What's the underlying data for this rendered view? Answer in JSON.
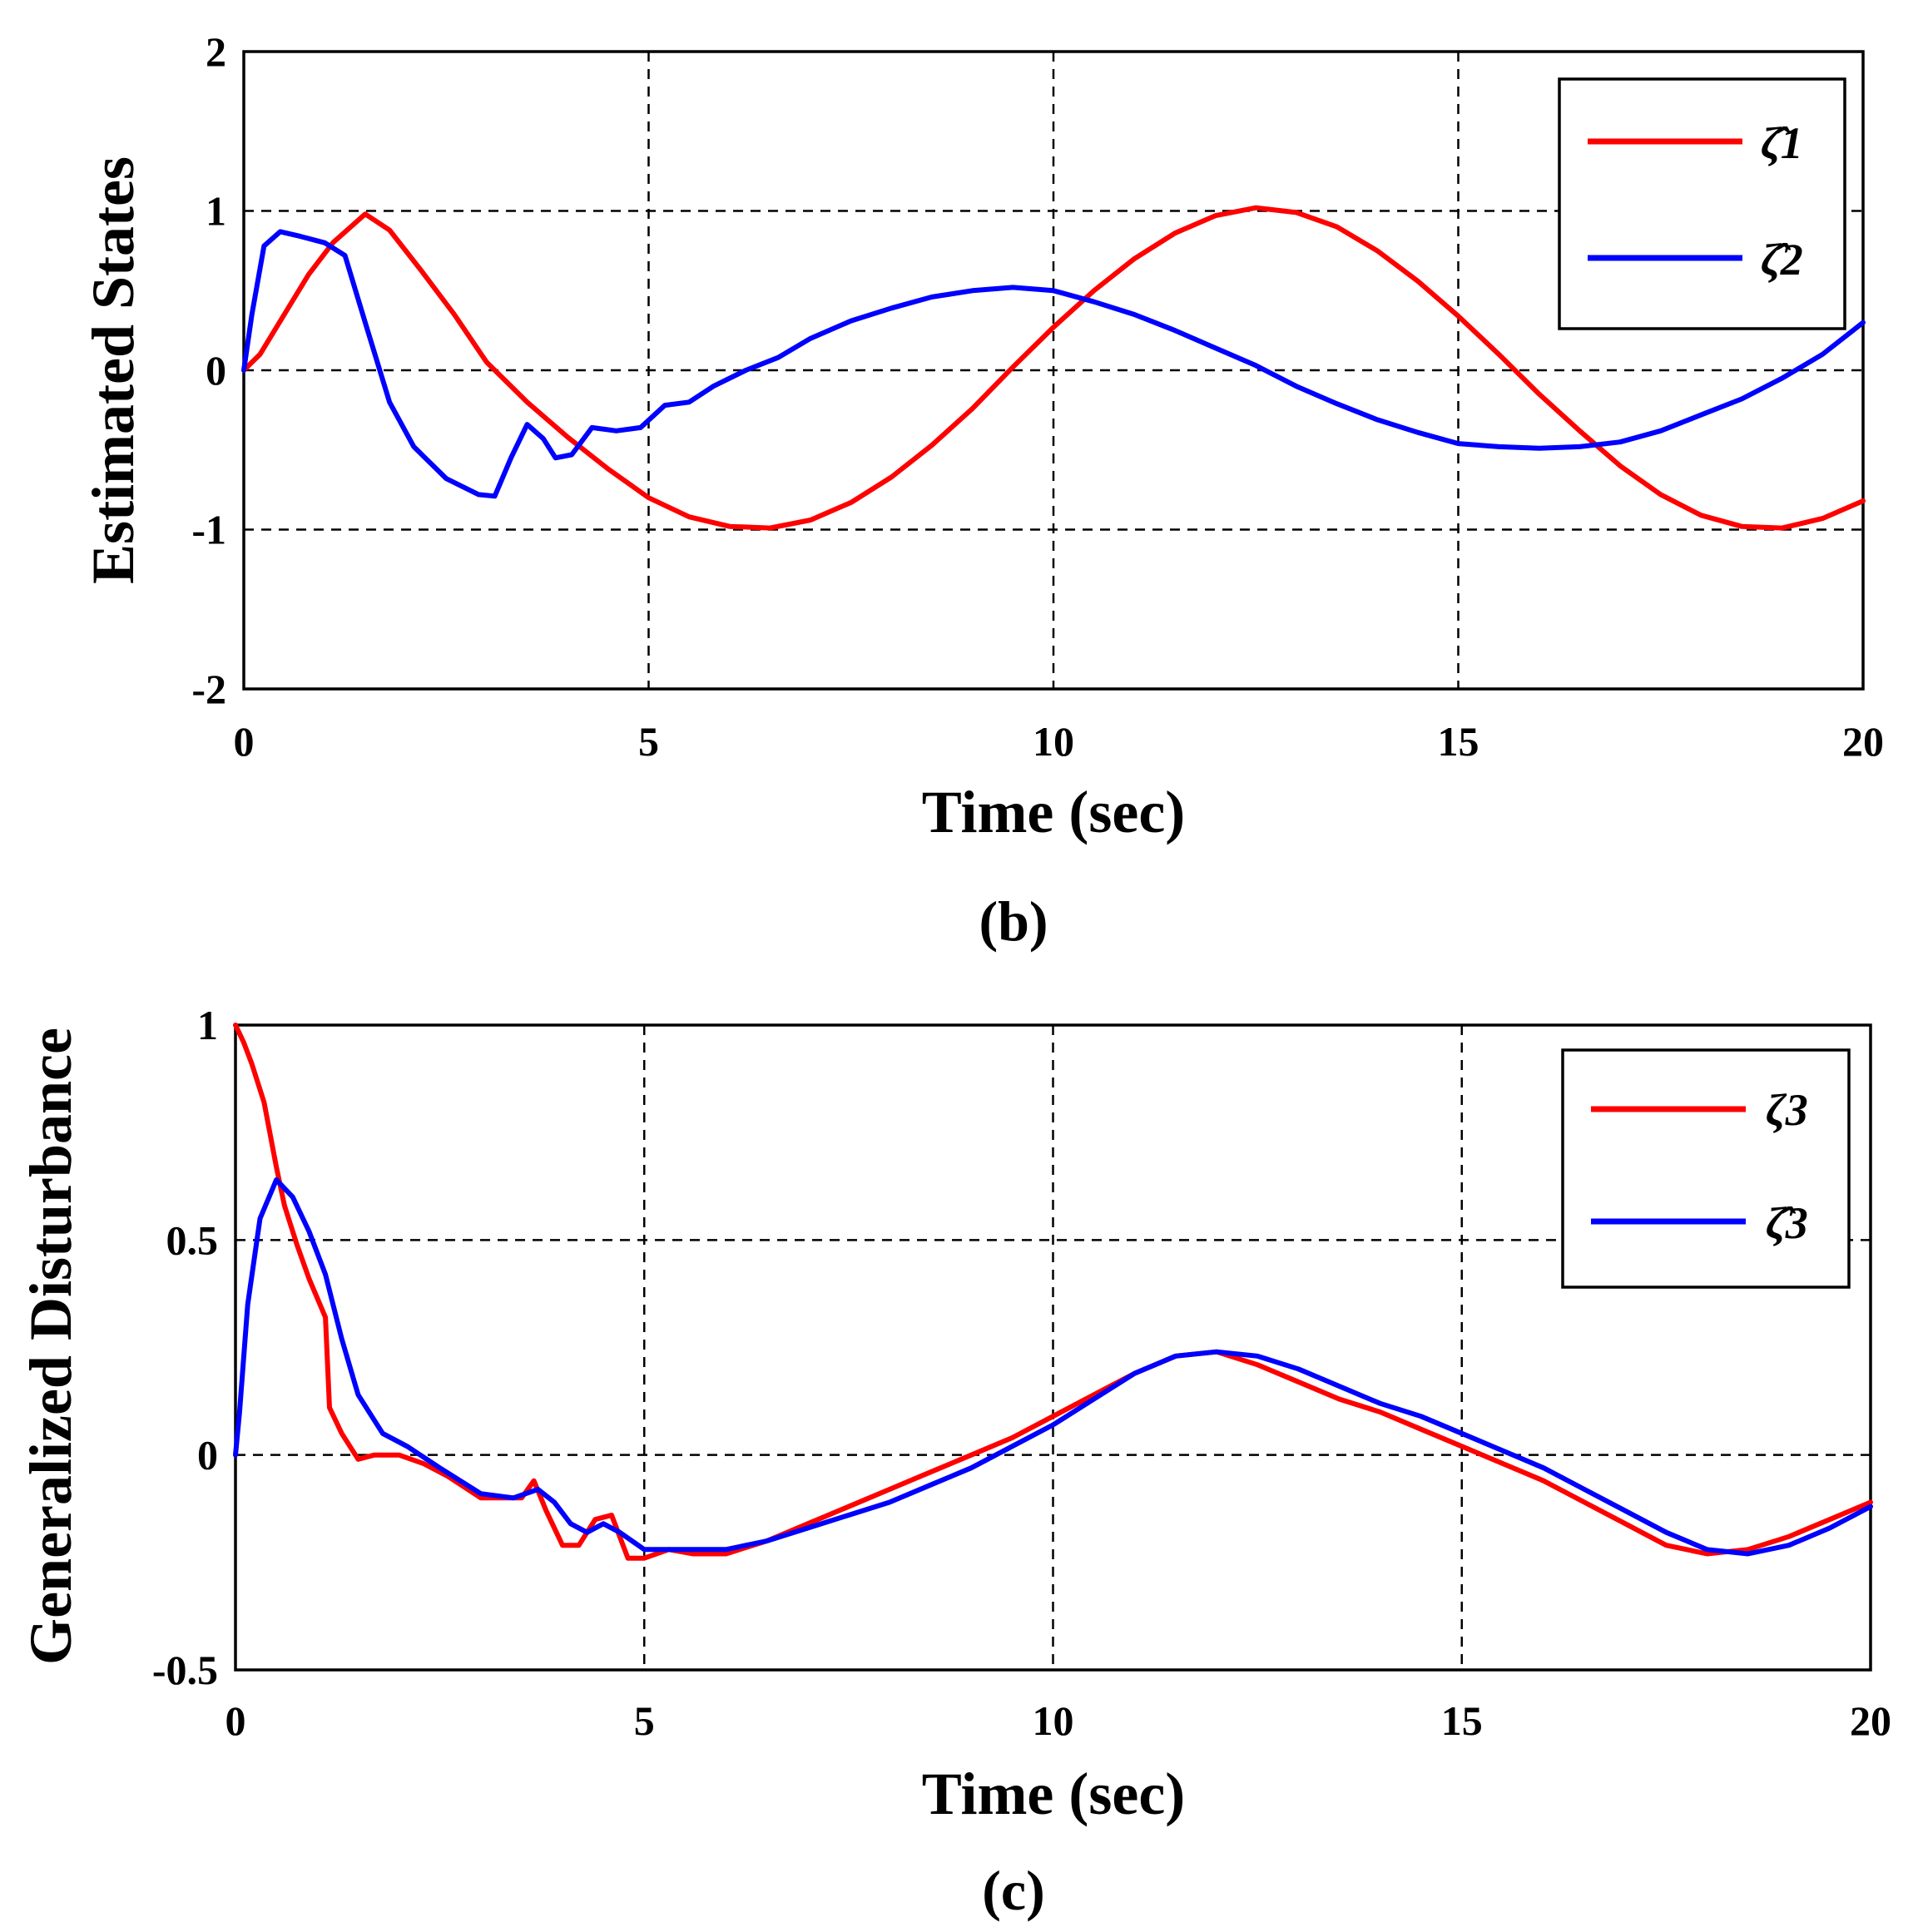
{
  "chart_data": [
    {
      "type": "line",
      "caption": "(b)",
      "xlabel": "Time (sec)",
      "ylabel": "Estimated States",
      "xlim": [
        0,
        20
      ],
      "ylim": [
        -2,
        2
      ],
      "xticks": [
        "0",
        "5",
        "10",
        "15",
        "20"
      ],
      "yticks": [
        "2",
        "1",
        "0",
        "-1",
        "-2"
      ],
      "grid": true,
      "legend_position": "top-right",
      "series": [
        {
          "name": "ζ̂1",
          "color": "#ff0000",
          "x": [
            0,
            0.2,
            0.5,
            0.8,
            1.1,
            1.5,
            1.8,
            2.2,
            2.6,
            3.0,
            3.5,
            4.0,
            4.5,
            5.0,
            5.5,
            6.0,
            6.5,
            7.0,
            7.5,
            8.0,
            8.5,
            9.0,
            9.5,
            10.0,
            10.5,
            11.0,
            11.5,
            12.0,
            12.5,
            13.0,
            13.5,
            14.0,
            14.5,
            15.0,
            15.5,
            16.0,
            16.5,
            17.0,
            17.5,
            18.0,
            18.5,
            19.0,
            19.5,
            20.0
          ],
          "y": [
            0.0,
            0.1,
            0.35,
            0.6,
            0.8,
            0.98,
            0.88,
            0.62,
            0.35,
            0.05,
            -0.2,
            -0.42,
            -0.62,
            -0.8,
            -0.92,
            -0.98,
            -0.99,
            -0.94,
            -0.83,
            -0.67,
            -0.47,
            -0.24,
            0.02,
            0.27,
            0.5,
            0.7,
            0.86,
            0.97,
            1.02,
            0.99,
            0.9,
            0.75,
            0.56,
            0.34,
            0.1,
            -0.15,
            -0.38,
            -0.6,
            -0.78,
            -0.91,
            -0.98,
            -0.99,
            -0.93,
            -0.82
          ]
        },
        {
          "name": "ζ̂2",
          "color": "#0000ff",
          "x": [
            0,
            0.1,
            0.25,
            0.45,
            0.7,
            1.0,
            1.25,
            1.5,
            1.8,
            2.1,
            2.5,
            2.9,
            3.1,
            3.3,
            3.5,
            3.7,
            3.85,
            4.05,
            4.3,
            4.6,
            4.9,
            5.2,
            5.5,
            5.8,
            6.2,
            6.6,
            7.0,
            7.5,
            8.0,
            8.5,
            9.0,
            9.5,
            10.0,
            10.5,
            11.0,
            11.5,
            12.0,
            12.5,
            13.0,
            13.5,
            14.0,
            14.5,
            15.0,
            15.5,
            16.0,
            16.5,
            17.0,
            17.5,
            18.0,
            18.5,
            19.0,
            19.5,
            20.0
          ],
          "y": [
            0.0,
            0.35,
            0.78,
            0.87,
            0.84,
            0.8,
            0.72,
            0.3,
            -0.2,
            -0.48,
            -0.68,
            -0.78,
            -0.79,
            -0.55,
            -0.34,
            -0.43,
            -0.55,
            -0.53,
            -0.36,
            -0.38,
            -0.36,
            -0.22,
            -0.2,
            -0.1,
            0.0,
            0.08,
            0.2,
            0.31,
            0.39,
            0.46,
            0.5,
            0.52,
            0.5,
            0.43,
            0.35,
            0.25,
            0.14,
            0.03,
            -0.1,
            -0.21,
            -0.31,
            -0.39,
            -0.46,
            -0.48,
            -0.49,
            -0.48,
            -0.45,
            -0.38,
            -0.28,
            -0.18,
            -0.05,
            0.1,
            0.3
          ]
        }
      ]
    },
    {
      "type": "line",
      "caption": "(c)",
      "xlabel": "Time (sec)",
      "ylabel": "Generalized Disturbance",
      "xlim": [
        0,
        20
      ],
      "ylim": [
        -0.5,
        1
      ],
      "xticks": [
        "0",
        "5",
        "10",
        "15",
        "20"
      ],
      "yticks": [
        "1",
        "0.5",
        "0",
        "-0.5"
      ],
      "grid": true,
      "legend_position": "top-right",
      "series": [
        {
          "name": "ζ3",
          "color": "#ff0000",
          "x": [
            0,
            0.1,
            0.2,
            0.35,
            0.5,
            0.6,
            0.75,
            0.9,
            1.1,
            1.15,
            1.3,
            1.5,
            1.7,
            2.0,
            2.3,
            2.6,
            3.0,
            3.3,
            3.5,
            3.65,
            3.8,
            4.0,
            4.2,
            4.4,
            4.6,
            4.8,
            5.0,
            5.3,
            5.6,
            6.0,
            6.5,
            7.0,
            7.5,
            8.0,
            8.5,
            9.0,
            9.5,
            10.0,
            10.5,
            11.0,
            11.5,
            12.0,
            12.5,
            13.0,
            13.5,
            14.0,
            14.5,
            15.0,
            15.5,
            16.0,
            16.5,
            17.0,
            17.5,
            18.0,
            18.5,
            19.0,
            19.5,
            20.0
          ],
          "y": [
            1.0,
            0.96,
            0.91,
            0.82,
            0.67,
            0.58,
            0.49,
            0.41,
            0.32,
            0.11,
            0.05,
            -0.01,
            0.0,
            0.0,
            -0.02,
            -0.05,
            -0.1,
            -0.1,
            -0.1,
            -0.06,
            -0.13,
            -0.21,
            -0.21,
            -0.15,
            -0.14,
            -0.24,
            -0.24,
            -0.22,
            -0.23,
            -0.23,
            -0.2,
            -0.16,
            -0.12,
            -0.08,
            -0.04,
            0.0,
            0.04,
            0.09,
            0.14,
            0.19,
            0.23,
            0.24,
            0.21,
            0.17,
            0.13,
            0.1,
            0.06,
            0.02,
            -0.02,
            -0.06,
            -0.11,
            -0.16,
            -0.21,
            -0.23,
            -0.22,
            -0.19,
            -0.15,
            -0.11
          ]
        },
        {
          "name": "ζ̂3",
          "color": "#0000ff",
          "x": [
            0,
            0.05,
            0.15,
            0.3,
            0.5,
            0.7,
            0.9,
            1.1,
            1.3,
            1.5,
            1.8,
            2.1,
            2.5,
            3.0,
            3.4,
            3.7,
            3.9,
            4.1,
            4.3,
            4.5,
            4.7,
            5.0,
            5.3,
            5.7,
            6.0,
            6.5,
            7.0,
            7.5,
            8.0,
            8.5,
            9.0,
            9.5,
            10.0,
            10.5,
            11.0,
            11.5,
            12.0,
            12.5,
            13.0,
            13.5,
            14.0,
            14.5,
            15.0,
            15.5,
            16.0,
            16.5,
            17.0,
            17.5,
            18.0,
            18.5,
            19.0,
            19.5,
            20.0
          ],
          "y": [
            0.0,
            0.1,
            0.35,
            0.55,
            0.64,
            0.6,
            0.52,
            0.42,
            0.27,
            0.14,
            0.05,
            0.02,
            -0.03,
            -0.09,
            -0.1,
            -0.08,
            -0.11,
            -0.16,
            -0.18,
            -0.16,
            -0.18,
            -0.22,
            -0.22,
            -0.22,
            -0.22,
            -0.2,
            -0.17,
            -0.14,
            -0.11,
            -0.07,
            -0.03,
            0.02,
            0.07,
            0.13,
            0.19,
            0.23,
            0.24,
            0.23,
            0.2,
            0.16,
            0.12,
            0.09,
            0.05,
            0.01,
            -0.03,
            -0.08,
            -0.13,
            -0.18,
            -0.22,
            -0.23,
            -0.21,
            -0.17,
            -0.12
          ]
        }
      ]
    }
  ]
}
